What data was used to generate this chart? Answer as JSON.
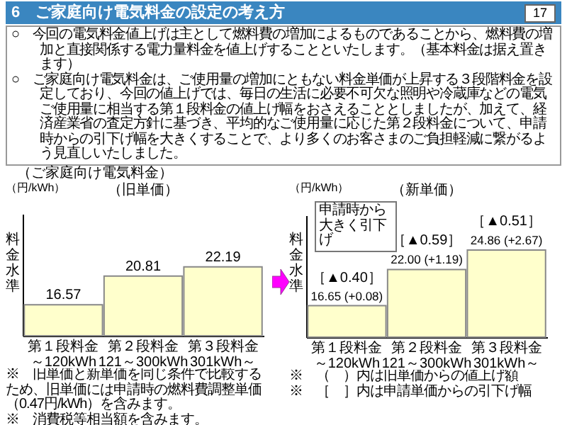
{
  "chart_data": [
    {
      "type": "other",
      "title": "6　ご家庭向け電気料金の設定の考え方",
      "annotations": [
        "17",
        "○　今回の電気料金値上げは主として燃料費の増加によるものであることから、燃料費の増加と直接関係する電力量料金を値上げすることといたします。（基本料金は据え置きます）",
        "○　ご家庭向け電気料金は、ご使用量の増加にともない料金単価が上昇する３段階料金を設定しており、今回の値上げでは、毎日の生活に必要不可欠な照明や冷蔵庫などの電気ご使用量に相当する第１段料金の値上げ幅をおさえることとしましたが、加えて、経済産業省の査定方針に基づき、平均的なご使用量に応じた第２段料金について、申請時からの引下げ幅を大きくすることで、より多くのお客さまのご負担軽減に繋がるよう見直しいたしました。",
        "（ご家庭向け電気料金）"
      ]
    },
    {
      "type": "bar",
      "title": "（旧単価）",
      "ylabel": "料金水準",
      "categories": [
        "第１段料金～120kWh",
        "第２段料金121～300kWh",
        "第３段料金301kWh～"
      ],
      "values": [
        16.57,
        20.81,
        22.19
      ],
      "color": "#ffffcc",
      "data_labels": true,
      "ylim": [
        12,
        30
      ],
      "annotations": [
        "（円/kWh）",
        "※　旧単価と新単価を同じ条件で比較するため、旧単価には申請時の燃料費調整単価（0.47円/kWh）を含みます。",
        "※　消費税等相当額を含みます。"
      ]
    },
    {
      "type": "bar",
      "title": "（新単価）",
      "ylabel": "料金水準",
      "categories": [
        "第１段料金～120kWh",
        "第２段料金121～300kWh",
        "第３段料金301kWh～"
      ],
      "values": [
        16.65,
        22.0,
        24.86
      ],
      "value_labels": [
        "16.65 (+0.08)",
        "22.00 (+1.19)",
        "24.86 (+2.67)"
      ],
      "color": "#ffffcc",
      "ylim": [
        12,
        30
      ],
      "annotations": [
        "（円/kWh）",
        "申請時から大きく引下げ",
        {
          "text": "［▲0.40］",
          "x": "第１段料金～120kWh",
          "y": 17.05
        },
        {
          "text": "［▲0.59］",
          "x": "第２段料金121～300kWh",
          "y": 22.59
        },
        {
          "text": "［▲0.51］",
          "x": "第３段料金301kWh～",
          "y": 25.37
        },
        "※　（　）内は旧単価からの値上げ額",
        "※　［　］内は申請単価からの引下げ幅"
      ]
    }
  ]
}
